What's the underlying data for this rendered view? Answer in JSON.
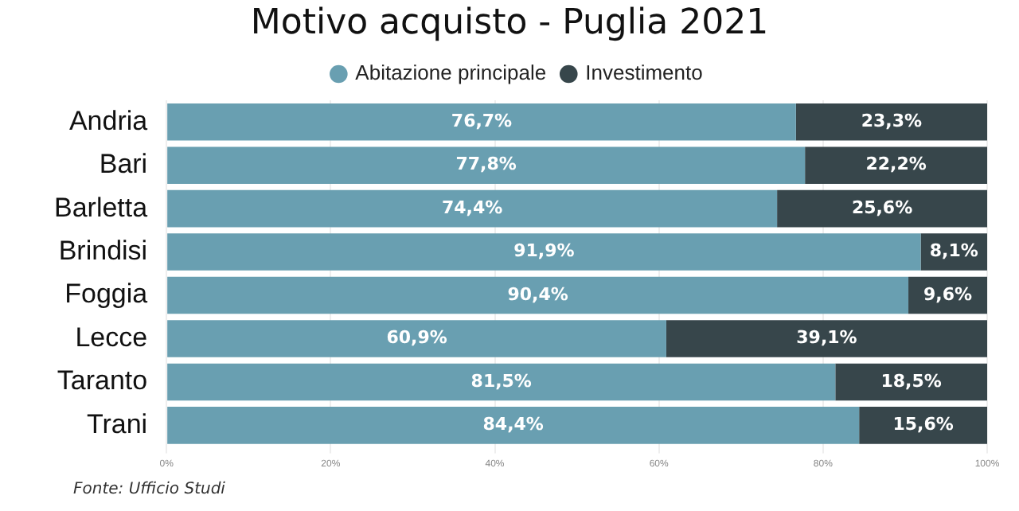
{
  "chart_data": {
    "type": "bar",
    "orientation": "horizontal",
    "stacked": true,
    "title": "Motivo acquisto - Puglia 2021",
    "legend": "top",
    "grid": "x",
    "categories": [
      "Andria",
      "Bari",
      "Barletta",
      "Brindisi",
      "Foggia",
      "Lecce",
      "Taranto",
      "Trani"
    ],
    "xlim": [
      0,
      100
    ],
    "xticks": [
      {
        "value": 0,
        "label": "0%"
      },
      {
        "value": 20,
        "label": "20%"
      },
      {
        "value": 40,
        "label": "40%"
      },
      {
        "value": 60,
        "label": "60%"
      },
      {
        "value": 80,
        "label": "80%"
      },
      {
        "value": 100,
        "label": "100%"
      }
    ],
    "series": [
      {
        "name": "Abitazione principale",
        "color": "#699fb1",
        "values": [
          76.7,
          77.8,
          74.4,
          91.9,
          90.4,
          60.9,
          81.5,
          84.4
        ],
        "value_labels": [
          "76,7%",
          "77,8%",
          "74,4%",
          "91,9%",
          "90,4%",
          "60,9%",
          "81,5%",
          "84,4%"
        ]
      },
      {
        "name": "Investimento",
        "color": "#37464b",
        "values": [
          23.3,
          22.2,
          25.6,
          8.1,
          9.6,
          39.1,
          18.5,
          15.6
        ],
        "value_labels": [
          "23,3%",
          "22,2%",
          "25,6%",
          "8,1%",
          "9,6%",
          "39,1%",
          "18,5%",
          "15,6%"
        ]
      }
    ],
    "annotations": [
      "Fonte: Ufficio Studi"
    ]
  }
}
